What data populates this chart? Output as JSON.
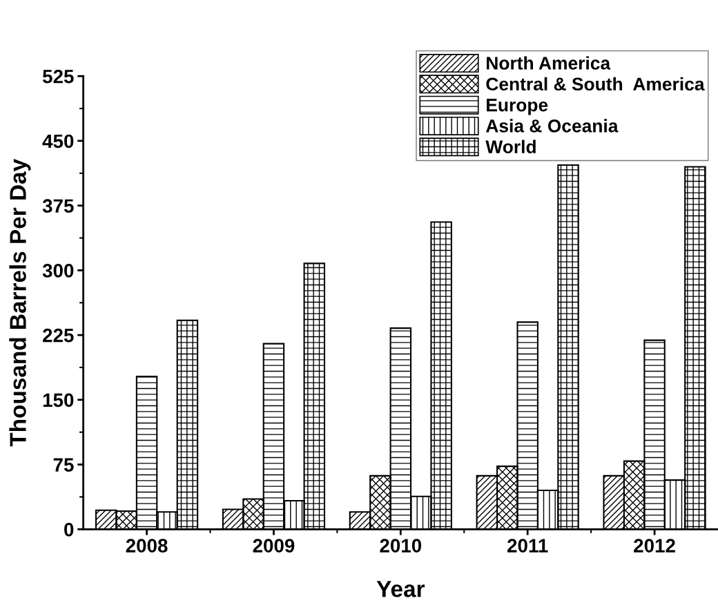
{
  "chart_data": {
    "type": "bar",
    "xlabel": "Year",
    "ylabel": "Thousand Barrels Per Day",
    "categories": [
      "2008",
      "2009",
      "2010",
      "2011",
      "2012"
    ],
    "series": [
      {
        "name": "North America",
        "color": "#000000",
        "values": [
          22,
          23,
          20,
          62,
          62
        ]
      },
      {
        "name": "Central & South  America",
        "color": "#000000",
        "values": [
          21,
          35,
          62,
          73,
          79
        ]
      },
      {
        "name": "Europe",
        "color": "#000000",
        "values": [
          177,
          215,
          233,
          240,
          219
        ]
      },
      {
        "name": "Asia & Oceania",
        "color": "#000000",
        "values": [
          20,
          33,
          38,
          45,
          57
        ]
      },
      {
        "name": "World",
        "color": "#000000",
        "values": [
          242,
          308,
          356,
          422,
          420
        ]
      }
    ],
    "ylim": [
      0,
      525
    ],
    "yticks": [
      0,
      75,
      150,
      225,
      300,
      375,
      450,
      525
    ],
    "grid": false,
    "legend": "top right"
  }
}
